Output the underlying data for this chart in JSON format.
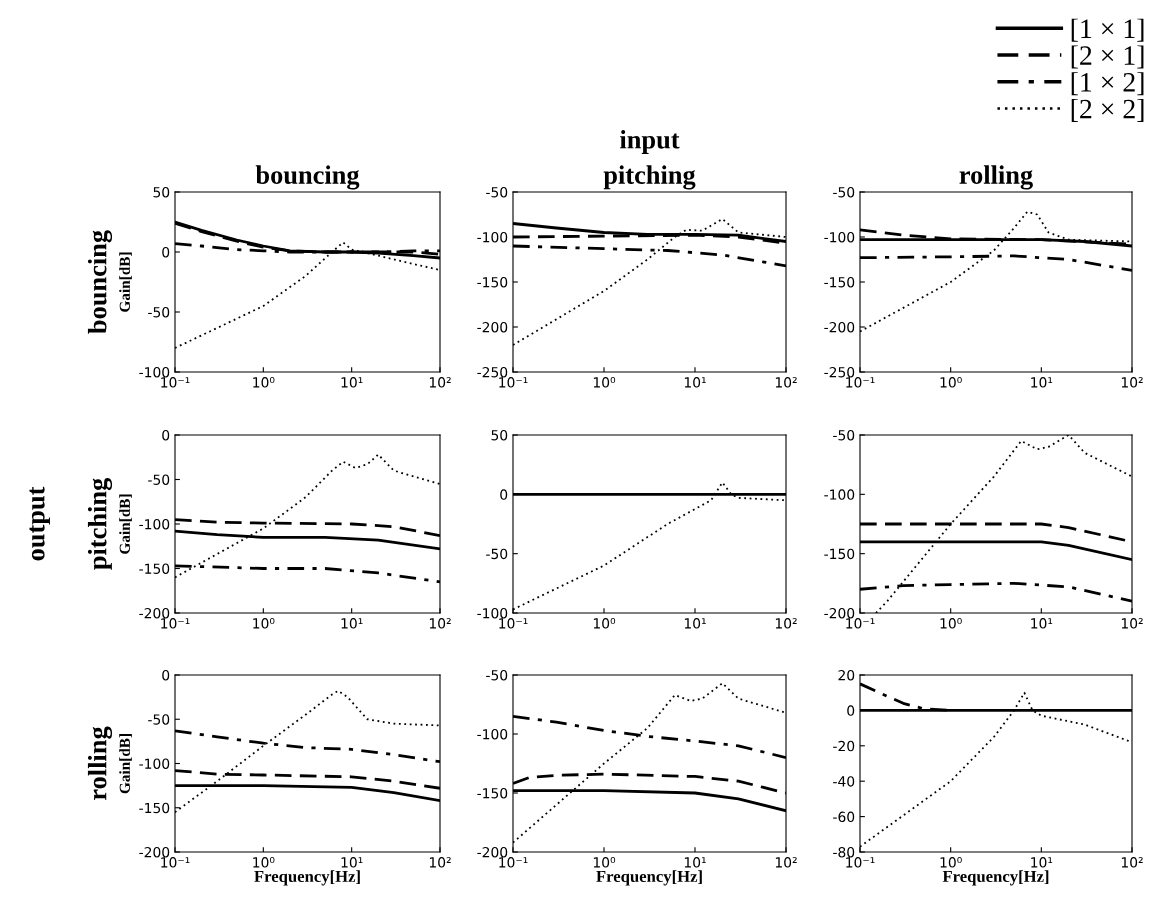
{
  "chart_data": [
    {
      "type": "line",
      "title": "bouncing",
      "ylabel": "Gain[dB]",
      "annotations": [
        "bouncing"
      ],
      "log": "x",
      "legend": "top right",
      "xlim": [
        0.1,
        100
      ],
      "xticks": [
        {
          "value": 0.1,
          "label": "10⁻¹"
        },
        {
          "value": 1,
          "label": "10⁰"
        },
        {
          "value": 10,
          "label": "10¹"
        },
        {
          "value": 100,
          "label": "10²"
        }
      ],
      "ylim": [
        -100,
        50
      ],
      "yticks": [
        -100,
        -50,
        0,
        50
      ],
      "series": [
        {
          "name": "[1 × 1]",
          "color": "#000000",
          "line_style": "solid",
          "x": [
            0.1,
            0.2,
            0.5,
            1,
            2,
            5,
            10,
            20,
            50,
            100
          ],
          "values": [
            25,
            18,
            10,
            5,
            1,
            0,
            0,
            -1,
            -3,
            -5
          ]
        },
        {
          "name": "[2 × 1]",
          "color": "#000000",
          "line_style": "dashed",
          "x": [
            0.1,
            0.2,
            0.5,
            1,
            2,
            5,
            10,
            20,
            50,
            100
          ],
          "values": [
            24,
            17,
            9,
            4,
            1,
            0,
            0,
            0,
            0,
            -2
          ]
        },
        {
          "name": "[1 × 2]",
          "color": "#000000",
          "line_style": "dashdot",
          "x": [
            0.1,
            0.2,
            0.5,
            1,
            2,
            5,
            10,
            20,
            50,
            100
          ],
          "values": [
            7,
            5,
            2,
            1,
            0,
            0,
            0,
            0,
            1,
            1
          ]
        },
        {
          "name": "[2 × 2]",
          "color": "#000000",
          "line_style": "dotted",
          "x": [
            0.1,
            1,
            3,
            6,
            8,
            10,
            20,
            50,
            100
          ],
          "values": [
            -80,
            -45,
            -20,
            0,
            8,
            2,
            -3,
            -10,
            -15
          ]
        }
      ]
    },
    {
      "type": "line",
      "title": "pitching",
      "annotations": [
        "input"
      ],
      "log": "x",
      "xlim": [
        0.1,
        100
      ],
      "xticks": [
        {
          "value": 0.1,
          "label": "10⁻¹"
        },
        {
          "value": 1,
          "label": "10⁰"
        },
        {
          "value": 10,
          "label": "10¹"
        },
        {
          "value": 100,
          "label": "10²"
        }
      ],
      "ylim": [
        -250,
        -50
      ],
      "yticks": [
        -250,
        -200,
        -150,
        -100,
        -50
      ],
      "series": [
        {
          "color": "#000000",
          "line_style": "solid",
          "x": [
            0.1,
            0.3,
            1,
            3,
            10,
            30,
            100
          ],
          "values": [
            -85,
            -90,
            -95,
            -97,
            -97,
            -98,
            -105
          ]
        },
        {
          "color": "#000000",
          "line_style": "dashed",
          "x": [
            0.1,
            1,
            10,
            30,
            100
          ],
          "values": [
            -100,
            -99,
            -98,
            -100,
            -107
          ]
        },
        {
          "color": "#000000",
          "line_style": "dashdot",
          "x": [
            0.1,
            1,
            5,
            20,
            100
          ],
          "values": [
            -110,
            -113,
            -115,
            -120,
            -132
          ]
        },
        {
          "color": "#000000",
          "line_style": "dotted",
          "x": [
            0.1,
            1,
            3,
            6,
            8,
            12,
            20,
            30,
            100
          ],
          "values": [
            -220,
            -160,
            -125,
            -100,
            -92,
            -93,
            -80,
            -95,
            -100
          ]
        }
      ]
    },
    {
      "type": "line",
      "title": "rolling",
      "log": "x",
      "xlim": [
        0.1,
        100
      ],
      "xticks": [
        {
          "value": 0.1,
          "label": "10⁻¹"
        },
        {
          "value": 1,
          "label": "10⁰"
        },
        {
          "value": 10,
          "label": "10¹"
        },
        {
          "value": 100,
          "label": "10²"
        }
      ],
      "ylim": [
        -250,
        -50
      ],
      "yticks": [
        -250,
        -200,
        -150,
        -100,
        -50
      ],
      "series": [
        {
          "color": "#000000",
          "line_style": "solid",
          "x": [
            0.1,
            1,
            10,
            30,
            100
          ],
          "values": [
            -103,
            -103,
            -103,
            -105,
            -110
          ]
        },
        {
          "color": "#000000",
          "line_style": "dashed",
          "x": [
            0.1,
            0.3,
            1,
            10,
            100
          ],
          "values": [
            -92,
            -98,
            -102,
            -103,
            -108
          ]
        },
        {
          "color": "#000000",
          "line_style": "dashdot",
          "x": [
            0.1,
            1,
            5,
            20,
            100
          ],
          "values": [
            -123,
            -122,
            -121,
            -125,
            -137
          ]
        },
        {
          "color": "#000000",
          "line_style": "dotted",
          "x": [
            0.1,
            1,
            3,
            5,
            7,
            9,
            12,
            20,
            100
          ],
          "values": [
            -205,
            -150,
            -115,
            -90,
            -72,
            -75,
            -95,
            -103,
            -105
          ]
        }
      ]
    },
    {
      "type": "line",
      "ylabel": "Gain[dB]",
      "annotations": [
        "output",
        "pitching"
      ],
      "log": "x",
      "xlim": [
        0.1,
        100
      ],
      "xticks": [
        {
          "value": 0.1,
          "label": "10⁻¹"
        },
        {
          "value": 1,
          "label": "10⁰"
        },
        {
          "value": 10,
          "label": "10¹"
        },
        {
          "value": 100,
          "label": "10²"
        }
      ],
      "ylim": [
        -200,
        0
      ],
      "yticks": [
        -200,
        -150,
        -100,
        -50,
        0
      ],
      "series": [
        {
          "color": "#000000",
          "line_style": "solid",
          "x": [
            0.1,
            0.3,
            1,
            5,
            20,
            100
          ],
          "values": [
            -108,
            -112,
            -115,
            -115,
            -118,
            -128
          ]
        },
        {
          "color": "#000000",
          "line_style": "dashed",
          "x": [
            0.1,
            0.3,
            1,
            10,
            30,
            100
          ],
          "values": [
            -95,
            -98,
            -99,
            -100,
            -103,
            -113
          ]
        },
        {
          "color": "#000000",
          "line_style": "dashdot",
          "x": [
            0.1,
            1,
            5,
            20,
            100
          ],
          "values": [
            -147,
            -150,
            -150,
            -155,
            -165
          ]
        },
        {
          "color": "#000000",
          "line_style": "dotted",
          "x": [
            0.1,
            1,
            3,
            6,
            8,
            11,
            15,
            20,
            30,
            100
          ],
          "values": [
            -160,
            -105,
            -70,
            -40,
            -30,
            -37,
            -33,
            -22,
            -40,
            -55
          ]
        }
      ]
    },
    {
      "type": "line",
      "log": "x",
      "xlim": [
        0.1,
        100
      ],
      "xticks": [
        {
          "value": 0.1,
          "label": "10⁻¹"
        },
        {
          "value": 1,
          "label": "10⁰"
        },
        {
          "value": 10,
          "label": "10¹"
        },
        {
          "value": 100,
          "label": "10²"
        }
      ],
      "ylim": [
        -100,
        50
      ],
      "yticks": [
        -100,
        -50,
        0,
        50
      ],
      "series": [
        {
          "color": "#000000",
          "line_style": "solid",
          "x": [
            0.1,
            100
          ],
          "values": [
            0,
            0
          ]
        },
        {
          "color": "#000000",
          "line_style": "dotted",
          "x": [
            0.1,
            1,
            5,
            15,
            20,
            25,
            30,
            100
          ],
          "values": [
            -97,
            -60,
            -25,
            -5,
            10,
            0,
            -3,
            -5
          ]
        }
      ]
    },
    {
      "type": "line",
      "log": "x",
      "xlim": [
        0.1,
        100
      ],
      "xticks": [
        {
          "value": 0.1,
          "label": "10⁻¹"
        },
        {
          "value": 1,
          "label": "10⁰"
        },
        {
          "value": 10,
          "label": "10¹"
        },
        {
          "value": 100,
          "label": "10²"
        }
      ],
      "ylim": [
        -200,
        -50
      ],
      "yticks": [
        -200,
        -150,
        -100,
        -50
      ],
      "series": [
        {
          "color": "#000000",
          "line_style": "solid",
          "x": [
            0.1,
            1,
            10,
            20,
            100
          ],
          "values": [
            -140,
            -140,
            -140,
            -143,
            -155
          ]
        },
        {
          "color": "#000000",
          "line_style": "dashed",
          "x": [
            0.1,
            1,
            10,
            20,
            100
          ],
          "values": [
            -125,
            -125,
            -125,
            -128,
            -140
          ]
        },
        {
          "color": "#000000",
          "line_style": "dashdot",
          "x": [
            0.1,
            0.3,
            1,
            5,
            20,
            100
          ],
          "values": [
            -180,
            -177,
            -176,
            -175,
            -178,
            -190
          ]
        },
        {
          "color": "#000000",
          "line_style": "dotted",
          "x": [
            0.15,
            0.2,
            1,
            3,
            6,
            9,
            12,
            20,
            30,
            100
          ],
          "values": [
            -200,
            -190,
            -125,
            -85,
            -55,
            -62,
            -60,
            -50,
            -65,
            -85
          ]
        }
      ]
    },
    {
      "type": "line",
      "ylabel": "Gain[dB]",
      "xlabel": "Frequency[Hz]",
      "annotations": [
        "rolling"
      ],
      "log": "x",
      "xlim": [
        0.1,
        100
      ],
      "xticks": [
        {
          "value": 0.1,
          "label": "10⁻¹"
        },
        {
          "value": 1,
          "label": "10⁰"
        },
        {
          "value": 10,
          "label": "10¹"
        },
        {
          "value": 100,
          "label": "10²"
        }
      ],
      "ylim": [
        -200,
        0
      ],
      "yticks": [
        -200,
        -150,
        -100,
        -50,
        0
      ],
      "series": [
        {
          "color": "#000000",
          "line_style": "solid",
          "x": [
            0.1,
            1,
            10,
            30,
            100
          ],
          "values": [
            -125,
            -125,
            -127,
            -133,
            -142
          ]
        },
        {
          "color": "#000000",
          "line_style": "dashed",
          "x": [
            0.1,
            0.3,
            1,
            10,
            30,
            100
          ],
          "values": [
            -108,
            -112,
            -113,
            -115,
            -120,
            -128
          ]
        },
        {
          "color": "#000000",
          "line_style": "dashdot",
          "x": [
            0.1,
            0.3,
            1,
            3,
            10,
            30,
            100
          ],
          "values": [
            -63,
            -70,
            -77,
            -82,
            -84,
            -90,
            -98
          ]
        },
        {
          "color": "#000000",
          "line_style": "dotted",
          "x": [
            0.1,
            0.3,
            1,
            3,
            6,
            7,
            9,
            15,
            30,
            100
          ],
          "values": [
            -155,
            -120,
            -80,
            -45,
            -22,
            -18,
            -25,
            -50,
            -55,
            -57
          ]
        }
      ]
    },
    {
      "type": "line",
      "xlabel": "Frequency[Hz]",
      "log": "x",
      "xlim": [
        0.1,
        100
      ],
      "xticks": [
        {
          "value": 0.1,
          "label": "10⁻¹"
        },
        {
          "value": 1,
          "label": "10⁰"
        },
        {
          "value": 10,
          "label": "10¹"
        },
        {
          "value": 100,
          "label": "10²"
        }
      ],
      "ylim": [
        -200,
        -50
      ],
      "yticks": [
        -200,
        -150,
        -100,
        -50
      ],
      "series": [
        {
          "color": "#000000",
          "line_style": "solid",
          "x": [
            0.1,
            1,
            10,
            30,
            100
          ],
          "values": [
            -148,
            -148,
            -150,
            -155,
            -165
          ]
        },
        {
          "color": "#000000",
          "line_style": "dashed",
          "x": [
            0.1,
            0.15,
            0.3,
            1,
            10,
            30,
            100
          ],
          "values": [
            -142,
            -137,
            -135,
            -134,
            -136,
            -140,
            -150
          ]
        },
        {
          "color": "#000000",
          "line_style": "dashdot",
          "x": [
            0.1,
            0.3,
            1,
            3,
            10,
            30,
            100
          ],
          "values": [
            -85,
            -90,
            -97,
            -102,
            -106,
            -110,
            -120
          ]
        },
        {
          "color": "#000000",
          "line_style": "dotted",
          "x": [
            0.1,
            0.3,
            1,
            3,
            6,
            9,
            12,
            20,
            30,
            100
          ],
          "values": [
            -192,
            -160,
            -125,
            -95,
            -67,
            -72,
            -70,
            -57,
            -70,
            -82
          ]
        }
      ]
    },
    {
      "type": "line",
      "xlabel": "Frequency[Hz]",
      "log": "x",
      "xlim": [
        0.1,
        100
      ],
      "xticks": [
        {
          "value": 0.1,
          "label": "10⁻¹"
        },
        {
          "value": 1,
          "label": "10⁰"
        },
        {
          "value": 10,
          "label": "10¹"
        },
        {
          "value": 100,
          "label": "10²"
        }
      ],
      "ylim": [
        -80,
        20
      ],
      "yticks": [
        -80,
        -60,
        -40,
        -20,
        0,
        20
      ],
      "series": [
        {
          "color": "#000000",
          "line_style": "solid",
          "x": [
            0.1,
            100
          ],
          "values": [
            0,
            0
          ]
        },
        {
          "color": "#000000",
          "line_style": "dashdot",
          "x": [
            0.1,
            0.2,
            0.3,
            0.5,
            1
          ],
          "values": [
            15,
            8,
            4,
            1,
            0
          ]
        },
        {
          "color": "#000000",
          "line_style": "dotted",
          "x": [
            0.1,
            1,
            3,
            5,
            6.5,
            8,
            10,
            30,
            100
          ],
          "values": [
            -77,
            -40,
            -15,
            0,
            10,
            0,
            -3,
            -8,
            -18
          ]
        }
      ]
    }
  ]
}
